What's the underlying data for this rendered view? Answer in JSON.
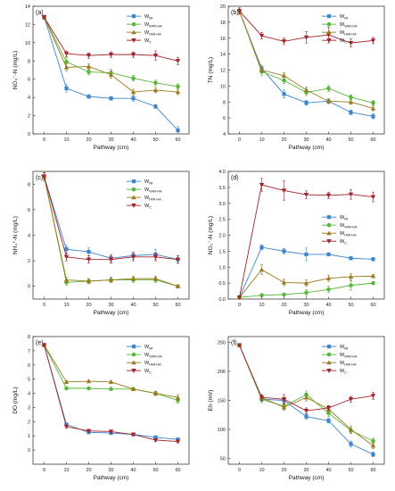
{
  "colors": {
    "W_MI": "#3d86cc",
    "W_WMI-HA": "#58b83a",
    "W_HMI-HA": "#9a7b1e",
    "W_C": "#a3232a"
  },
  "legend_items": [
    {
      "key": "W_MI",
      "base": "W",
      "sub": "MI"
    },
    {
      "key": "W_WMI-HA",
      "base": "W",
      "sub": "WMI-HA"
    },
    {
      "key": "W_HMI-HA",
      "base": "W",
      "sub": "HMI-HA"
    },
    {
      "key": "W_C",
      "base": "W",
      "sub": "C"
    }
  ],
  "chart_data": [
    {
      "panel": "(a)",
      "type": "line",
      "xlabel": "Pathway (cm)",
      "ylabel": "NO₃⁻-N (mg/L)",
      "x": [
        0,
        10,
        20,
        30,
        40,
        50,
        60
      ],
      "xlim": [
        -5,
        65
      ],
      "ylim": [
        0,
        14
      ],
      "yticks": [
        0,
        2,
        4,
        6,
        8,
        10,
        12,
        14
      ],
      "series": [
        {
          "key": "W_MI",
          "values": [
            12.8,
            5.0,
            4.1,
            3.9,
            3.9,
            3.0,
            0.4
          ],
          "err": [
            0.2,
            0.4,
            0.2,
            0.2,
            0.3,
            0.2,
            0.4
          ]
        },
        {
          "key": "W_WMI-HA",
          "values": [
            12.8,
            7.9,
            6.8,
            6.7,
            6.1,
            5.6,
            5.2
          ],
          "err": [
            0.2,
            0.5,
            0.3,
            0.4,
            0.3,
            0.3,
            0.3
          ]
        },
        {
          "key": "W_HMI-HA",
          "values": [
            12.8,
            7.3,
            7.4,
            6.5,
            4.6,
            4.8,
            4.6
          ],
          "err": [
            0.2,
            0.4,
            0.3,
            0.4,
            0.3,
            0.3,
            0.3
          ]
        },
        {
          "key": "W_C",
          "values": [
            12.8,
            8.8,
            8.6,
            8.7,
            8.7,
            8.6,
            8.0
          ],
          "err": [
            0.2,
            0.3,
            0.3,
            0.3,
            0.3,
            0.5,
            0.4
          ]
        }
      ],
      "legend": "center-right"
    },
    {
      "panel": "(b)",
      "type": "line",
      "xlabel": "Pathway (cm)",
      "ylabel": "TN (mg/L)",
      "x": [
        0,
        10,
        20,
        30,
        40,
        50,
        60
      ],
      "xlim": [
        -5,
        65
      ],
      "ylim": [
        4,
        20
      ],
      "yticks": [
        4,
        6,
        8,
        10,
        12,
        14,
        16,
        18,
        20
      ],
      "series": [
        {
          "key": "W_MI",
          "values": [
            19.4,
            12.2,
            9.0,
            7.9,
            8.1,
            6.7,
            6.2
          ],
          "err": [
            0.4,
            0.4,
            0.5,
            0.3,
            0.3,
            0.3,
            0.3
          ]
        },
        {
          "key": "W_WMI-HA",
          "values": [
            19.4,
            11.8,
            10.7,
            9.2,
            9.7,
            8.6,
            7.9
          ],
          "err": [
            0.4,
            0.5,
            0.4,
            0.4,
            0.4,
            0.3,
            0.3
          ]
        },
        {
          "key": "W_HMI-HA",
          "values": [
            19.4,
            12.0,
            11.3,
            9.5,
            8.1,
            8.0,
            7.2
          ],
          "err": [
            0.4,
            0.4,
            0.4,
            0.4,
            0.3,
            0.3,
            0.3
          ]
        },
        {
          "key": "W_C",
          "values": [
            19.4,
            16.3,
            15.6,
            16.1,
            16.4,
            15.4,
            15.7
          ],
          "err": [
            0.4,
            0.4,
            0.4,
            0.7,
            1.0,
            0.5,
            0.4
          ]
        }
      ],
      "legend": "upper-right"
    },
    {
      "panel": "(c)",
      "type": "line",
      "xlabel": "Pathway (cm)",
      "ylabel": "NH₄⁺-N (mg/L)",
      "x": [
        0,
        10,
        20,
        30,
        40,
        50,
        60
      ],
      "xlim": [
        -5,
        65
      ],
      "ylim": [
        -1,
        9
      ],
      "yticks": [
        0,
        2,
        4,
        6,
        8
      ],
      "series": [
        {
          "key": "W_MI",
          "values": [
            8.6,
            2.9,
            2.7,
            2.2,
            2.4,
            2.5,
            2.1
          ],
          "err": [
            0.3,
            0.3,
            0.3,
            0.3,
            0.3,
            0.4,
            0.3
          ]
        },
        {
          "key": "W_WMI-HA",
          "values": [
            8.6,
            0.3,
            0.4,
            0.5,
            0.5,
            0.5,
            0.0
          ],
          "err": [
            0.3,
            0.2,
            0.2,
            0.2,
            0.2,
            0.2,
            0.1
          ]
        },
        {
          "key": "W_HMI-HA",
          "values": [
            8.6,
            0.5,
            0.4,
            0.5,
            0.6,
            0.6,
            0.0
          ],
          "err": [
            0.3,
            0.2,
            0.2,
            0.2,
            0.2,
            0.2,
            0.1
          ]
        },
        {
          "key": "W_C",
          "values": [
            8.6,
            2.3,
            2.1,
            2.1,
            2.3,
            2.3,
            2.1
          ],
          "err": [
            0.3,
            0.3,
            0.3,
            0.3,
            0.3,
            0.3,
            0.3
          ]
        }
      ],
      "legend": "upper-right"
    },
    {
      "panel": "(d)",
      "type": "line",
      "xlabel": "Pathway (cm)",
      "ylabel": "NO₂⁻-N (mg/L)",
      "x": [
        0,
        10,
        20,
        30,
        40,
        50,
        60
      ],
      "xlim": [
        -5,
        65
      ],
      "ylim": [
        0,
        4
      ],
      "yticks": [
        0.0,
        0.5,
        1.0,
        1.5,
        2.0,
        2.5,
        3.0,
        3.5,
        4.0
      ],
      "series": [
        {
          "key": "W_MI",
          "values": [
            0.05,
            1.62,
            1.5,
            1.4,
            1.4,
            1.28,
            1.25
          ],
          "err": [
            0.05,
            0.08,
            0.08,
            0.2,
            0.05,
            0.05,
            0.05
          ]
        },
        {
          "key": "W_WMI-HA",
          "values": [
            0.05,
            0.12,
            0.14,
            0.2,
            0.3,
            0.43,
            0.5
          ],
          "err": [
            0.05,
            0.05,
            0.05,
            0.1,
            0.1,
            0.15,
            0.05
          ]
        },
        {
          "key": "W_HMI-HA",
          "values": [
            0.05,
            0.92,
            0.52,
            0.5,
            0.65,
            0.7,
            0.72
          ],
          "err": [
            0.05,
            0.15,
            0.1,
            0.1,
            0.1,
            0.1,
            0.05
          ]
        },
        {
          "key": "W_C",
          "values": [
            0.05,
            3.58,
            3.4,
            3.27,
            3.25,
            3.28,
            3.2
          ],
          "err": [
            0.05,
            0.2,
            0.3,
            0.12,
            0.1,
            0.15,
            0.15
          ]
        }
      ],
      "legend": "center-right"
    },
    {
      "panel": "(e)",
      "type": "line",
      "xlabel": "Pathway (cm)",
      "ylabel": "DO (mg/L)",
      "x": [
        0,
        10,
        20,
        30,
        40,
        50,
        60
      ],
      "xlim": [
        -5,
        65
      ],
      "ylim": [
        -1,
        8
      ],
      "yticks": [
        0,
        1,
        2,
        3,
        4,
        5,
        6,
        7,
        8
      ],
      "series": [
        {
          "key": "W_MI",
          "values": [
            7.4,
            1.8,
            1.25,
            1.2,
            1.1,
            0.9,
            0.75
          ],
          "err": [
            0.05,
            0.1,
            0.1,
            0.1,
            0.1,
            0.1,
            0.1
          ]
        },
        {
          "key": "W_WMI-HA",
          "values": [
            7.4,
            4.35,
            4.35,
            4.3,
            4.3,
            4.0,
            3.5
          ],
          "err": [
            0.05,
            0.1,
            0.1,
            0.1,
            0.1,
            0.15,
            0.2
          ]
        },
        {
          "key": "W_HMI-HA",
          "values": [
            7.4,
            4.8,
            4.85,
            4.8,
            4.3,
            4.0,
            3.7
          ],
          "err": [
            0.05,
            0.1,
            0.1,
            0.1,
            0.1,
            0.15,
            0.2
          ]
        },
        {
          "key": "W_C",
          "values": [
            7.4,
            1.65,
            1.35,
            1.3,
            1.1,
            0.7,
            0.6
          ],
          "err": [
            0.05,
            0.1,
            0.1,
            0.1,
            0.1,
            0.1,
            0.1
          ]
        }
      ],
      "legend": "upper-right"
    },
    {
      "panel": "(f)",
      "type": "line",
      "xlabel": "Pathway (cm)",
      "ylabel": "Eh (mV)",
      "x": [
        0,
        10,
        20,
        30,
        40,
        50,
        60
      ],
      "xlim": [
        -5,
        65
      ],
      "ylim": [
        40,
        260
      ],
      "yticks": [
        50,
        100,
        150,
        200,
        250
      ],
      "series": [
        {
          "key": "W_MI",
          "values": [
            245,
            152,
            150,
            122,
            115,
            75,
            57
          ],
          "err": [
            3,
            4,
            4,
            4,
            4,
            5,
            4
          ]
        },
        {
          "key": "W_WMI-HA",
          "values": [
            245,
            152,
            140,
            160,
            128,
            98,
            80
          ],
          "err": [
            3,
            6,
            5,
            6,
            6,
            5,
            5
          ]
        },
        {
          "key": "W_HMI-HA",
          "values": [
            245,
            155,
            138,
            155,
            135,
            100,
            72
          ],
          "err": [
            3,
            5,
            5,
            6,
            6,
            6,
            5
          ]
        },
        {
          "key": "W_C",
          "values": [
            245,
            155,
            152,
            132,
            137,
            152,
            158
          ],
          "err": [
            3,
            5,
            8,
            5,
            4,
            5,
            6
          ]
        }
      ],
      "legend": "upper-right"
    }
  ]
}
